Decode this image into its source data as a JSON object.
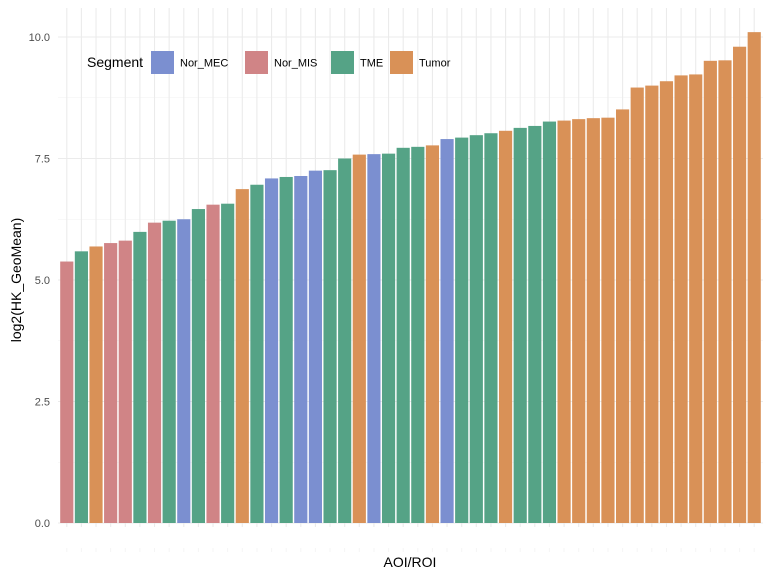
{
  "chart_data": {
    "type": "bar",
    "title": "",
    "xlabel": "AOI/ROI",
    "ylabel": "log2(HK_GeoMean)",
    "ylim": [
      0,
      10.3
    ],
    "yticks": [
      0.0,
      2.5,
      5.0,
      7.5,
      10.0
    ],
    "ytick_labels": [
      "0.0",
      "2.5",
      "5.0",
      "7.5",
      "10.0"
    ],
    "grid": true,
    "legend": {
      "title": "Segment",
      "position": "top-left",
      "entries": [
        {
          "name": "Nor_MEC",
          "color": "#7b8fd0"
        },
        {
          "name": "Nor_MIS",
          "color": "#d08486"
        },
        {
          "name": "TME",
          "color": "#55a386"
        },
        {
          "name": "Tumor",
          "color": "#d99157"
        }
      ]
    },
    "bars": [
      {
        "segment": "Nor_MIS",
        "value": 5.38
      },
      {
        "segment": "TME",
        "value": 5.59
      },
      {
        "segment": "Tumor",
        "value": 5.69
      },
      {
        "segment": "Nor_MIS",
        "value": 5.76
      },
      {
        "segment": "Nor_MIS",
        "value": 5.81
      },
      {
        "segment": "TME",
        "value": 5.99
      },
      {
        "segment": "Nor_MIS",
        "value": 6.18
      },
      {
        "segment": "TME",
        "value": 6.22
      },
      {
        "segment": "Nor_MEC",
        "value": 6.25
      },
      {
        "segment": "TME",
        "value": 6.46
      },
      {
        "segment": "Nor_MIS",
        "value": 6.55
      },
      {
        "segment": "TME",
        "value": 6.57
      },
      {
        "segment": "Tumor",
        "value": 6.87
      },
      {
        "segment": "TME",
        "value": 6.96
      },
      {
        "segment": "Nor_MEC",
        "value": 7.09
      },
      {
        "segment": "TME",
        "value": 7.12
      },
      {
        "segment": "Nor_MEC",
        "value": 7.14
      },
      {
        "segment": "Nor_MEC",
        "value": 7.25
      },
      {
        "segment": "TME",
        "value": 7.26
      },
      {
        "segment": "TME",
        "value": 7.5
      },
      {
        "segment": "Tumor",
        "value": 7.58
      },
      {
        "segment": "Nor_MEC",
        "value": 7.59
      },
      {
        "segment": "TME",
        "value": 7.6
      },
      {
        "segment": "TME",
        "value": 7.72
      },
      {
        "segment": "TME",
        "value": 7.74
      },
      {
        "segment": "Tumor",
        "value": 7.77
      },
      {
        "segment": "Nor_MEC",
        "value": 7.9
      },
      {
        "segment": "TME",
        "value": 7.93
      },
      {
        "segment": "TME",
        "value": 7.98
      },
      {
        "segment": "TME",
        "value": 8.02
      },
      {
        "segment": "Tumor",
        "value": 8.07
      },
      {
        "segment": "TME",
        "value": 8.13
      },
      {
        "segment": "TME",
        "value": 8.17
      },
      {
        "segment": "TME",
        "value": 8.26
      },
      {
        "segment": "Tumor",
        "value": 8.28
      },
      {
        "segment": "Tumor",
        "value": 8.31
      },
      {
        "segment": "Tumor",
        "value": 8.33
      },
      {
        "segment": "Tumor",
        "value": 8.34
      },
      {
        "segment": "Tumor",
        "value": 8.51
      },
      {
        "segment": "Tumor",
        "value": 8.96
      },
      {
        "segment": "Tumor",
        "value": 9.0
      },
      {
        "segment": "Tumor",
        "value": 9.09
      },
      {
        "segment": "Tumor",
        "value": 9.21
      },
      {
        "segment": "Tumor",
        "value": 9.23
      },
      {
        "segment": "Tumor",
        "value": 9.51
      },
      {
        "segment": "Tumor",
        "value": 9.52
      },
      {
        "segment": "Tumor",
        "value": 9.8
      },
      {
        "segment": "Tumor",
        "value": 10.1
      }
    ]
  }
}
